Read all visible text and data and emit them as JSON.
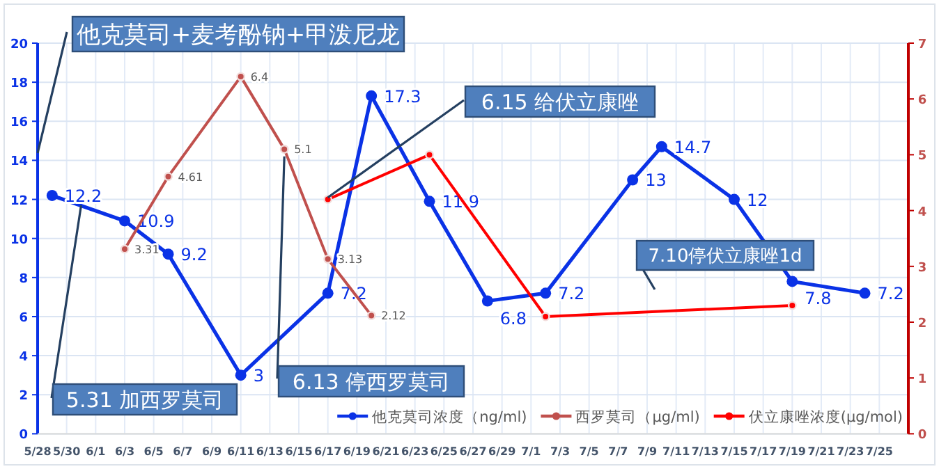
{
  "chart_data": {
    "type": "line",
    "x": [
      "--05-29",
      "--06-03",
      "--06-06",
      "--06-11",
      "--06-17",
      "--06-20",
      "--06-24",
      "--06-28",
      "--07-02",
      "--07-08",
      "--07-10",
      "--07-15",
      "--07-19",
      "--07-24"
    ],
    "series": [
      {
        "name": "他克莫司浓度（ng/ml)",
        "color": "#0a32e6",
        "values": [
          12.2,
          10.9,
          9.2,
          3,
          7.2,
          17.3,
          11.9,
          6.8,
          7.2,
          13,
          14.7,
          12,
          7.8,
          7.2
        ],
        "value_labels": [
          "12.2",
          "10.9",
          "9.2",
          "3",
          "7.2",
          "17.3",
          "11.9",
          "6.8",
          "7.2",
          "13",
          "14.7",
          "12",
          "7.8",
          "7.2"
        ]
      },
      {
        "name": "西罗莫司（μg/ml)",
        "color": "#c0504d",
        "axis": "y2",
        "x": [
          "--06-03",
          "--06-06",
          "--06-11",
          "--06-14",
          "--06-17",
          "--06-20"
        ],
        "values": [
          3.31,
          4.61,
          6.4,
          5.1,
          3.13,
          2.12
        ],
        "value_labels": [
          "3.31",
          "4.61",
          "6.4",
          "5.1",
          "3.13",
          "2.12"
        ]
      },
      {
        "name": "伏立康唑浓度(μg/mol)",
        "color": "#ff0000",
        "axis": "y2",
        "x": [
          "--06-17",
          "--06-24",
          "--07-02",
          "--07-19"
        ],
        "values": [
          4.2,
          5.0,
          2.1,
          2.3
        ]
      }
    ],
    "xlim": [
      "--05-28",
      "--07-27"
    ],
    "xticks": [
      {
        "value": "--05-28",
        "label": "5/28"
      },
      {
        "value": "--05-30",
        "label": "5/30"
      },
      {
        "value": "--06-01",
        "label": "6/1"
      },
      {
        "value": "--06-03",
        "label": "6/3"
      },
      {
        "value": "--06-05",
        "label": "6/5"
      },
      {
        "value": "--06-07",
        "label": "6/7"
      },
      {
        "value": "--06-09",
        "label": "6/9"
      },
      {
        "value": "--06-11",
        "label": "6/11"
      },
      {
        "value": "--06-13",
        "label": "6/13"
      },
      {
        "value": "--06-15",
        "label": "6/15"
      },
      {
        "value": "--06-17",
        "label": "6/17"
      },
      {
        "value": "--06-19",
        "label": "6/19"
      },
      {
        "value": "--06-21",
        "label": "6/21"
      },
      {
        "value": "--06-23",
        "label": "6/23"
      },
      {
        "value": "--06-25",
        "label": "6/25"
      },
      {
        "value": "--06-27",
        "label": "6/27"
      },
      {
        "value": "--06-29",
        "label": "6/29"
      },
      {
        "value": "--07-01",
        "label": "7/1"
      },
      {
        "value": "--07-03",
        "label": "7/3"
      },
      {
        "value": "--07-05",
        "label": "7/5"
      },
      {
        "value": "--07-07",
        "label": "7/7"
      },
      {
        "value": "--07-09",
        "label": "7/9"
      },
      {
        "value": "--07-11",
        "label": "7/11"
      },
      {
        "value": "--07-13",
        "label": "7/13"
      },
      {
        "value": "--07-15",
        "label": "7/15"
      },
      {
        "value": "--07-17",
        "label": "7/17"
      },
      {
        "value": "--07-19",
        "label": "7/19"
      },
      {
        "value": "--07-21",
        "label": "7/21"
      },
      {
        "value": "--07-23",
        "label": "7/23"
      },
      {
        "value": "--07-25",
        "label": "7/25"
      }
    ],
    "ylim": [
      0,
      20
    ],
    "yticks": [
      0,
      2,
      4,
      6,
      8,
      10,
      12,
      14,
      16,
      18,
      20
    ],
    "y2lim": [
      0,
      7
    ],
    "y2ticks": [
      0,
      1,
      2,
      3,
      4,
      5,
      6,
      7
    ],
    "grid": true,
    "legend": "bottom right",
    "marker": "circle",
    "line_style": "solid",
    "annotations": [
      "他克莫司+麦考酚钠+甲泼尼龙",
      {
        "text": "5.31 加西罗莫司",
        "x": "--05-31",
        "y": 11.7
      },
      {
        "text": "6.13 停西罗莫司",
        "x": "--06-14",
        "y": 14.2
      },
      {
        "text": "6.15 给伏立康唑",
        "x": "--06-17",
        "y": 12.1
      },
      "7.10停伏立康唑1d"
    ]
  }
}
